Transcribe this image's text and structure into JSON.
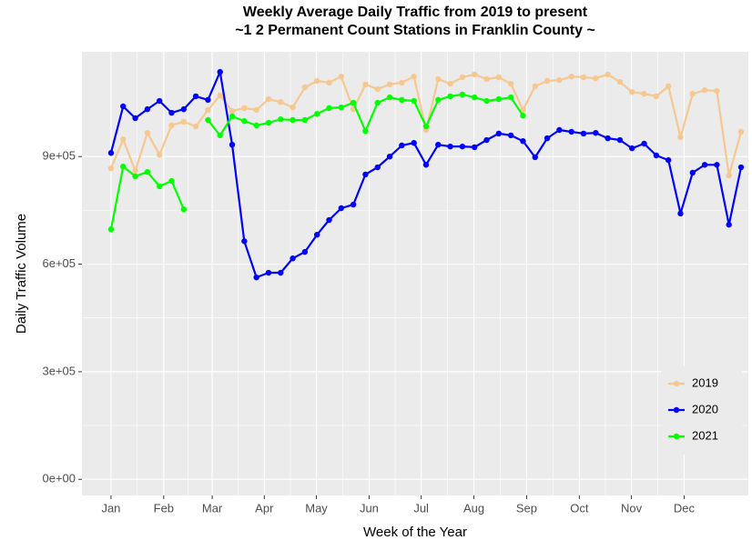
{
  "chart_data": {
    "type": "line",
    "title": "Weekly Average Daily Traffic from 2019 to present",
    "subtitle": "~1 2 Permanent Count Stations in Franklin County ~",
    "x_label": "Week of the Year",
    "y_label": "Daily Traffic Volume",
    "x": [
      1,
      2,
      3,
      4,
      5,
      6,
      7,
      8,
      9,
      10,
      11,
      12,
      13,
      14,
      15,
      16,
      17,
      18,
      19,
      20,
      21,
      22,
      23,
      24,
      25,
      26,
      27,
      28,
      29,
      30,
      31,
      32,
      33,
      34,
      35,
      36,
      37,
      38,
      39,
      40,
      41,
      42,
      43,
      44,
      45,
      46,
      47,
      48,
      49,
      50,
      51,
      52,
      53
    ],
    "xlim": [
      -1.4,
      53.6
    ],
    "xticks": [
      {
        "value": 1,
        "label": "Jan"
      },
      {
        "value": 5.35,
        "label": "Feb"
      },
      {
        "value": 9.35,
        "label": "Mar"
      },
      {
        "value": 13.65,
        "label": "Apr"
      },
      {
        "value": 17.95,
        "label": "May"
      },
      {
        "value": 22.3,
        "label": "Jun"
      },
      {
        "value": 26.6,
        "label": "Jul"
      },
      {
        "value": 30.95,
        "label": "Aug"
      },
      {
        "value": 35.3,
        "label": "Sep"
      },
      {
        "value": 39.65,
        "label": "Oct"
      },
      {
        "value": 43.95,
        "label": "Nov"
      },
      {
        "value": 48.3,
        "label": "Dec"
      }
    ],
    "ylim": [
      -45000,
      1192000
    ],
    "yticks": [
      {
        "value": 0,
        "label": "0e+00"
      },
      {
        "value": 300000,
        "label": "3e+05"
      },
      {
        "value": 600000,
        "label": "6e+05"
      },
      {
        "value": 900000,
        "label": "9e+05"
      }
    ],
    "grid": true,
    "legend": "bottom-right",
    "series": [
      {
        "name": "2019",
        "color": "#f5c891",
        "values": [
          867000,
          948000,
          860000,
          966000,
          905000,
          987000,
          997000,
          984000,
          1030000,
          1070000,
          1027000,
          1035000,
          1030000,
          1060000,
          1052000,
          1037000,
          1093000,
          1111000,
          1106000,
          1123000,
          1032000,
          1101000,
          1088000,
          1101000,
          1106000,
          1123000,
          974000,
          1116000,
          1103000,
          1121000,
          1129000,
          1116000,
          1121000,
          1103000,
          1030000,
          1096000,
          1111000,
          1113000,
          1123000,
          1121000,
          1118000,
          1129000,
          1108000,
          1080000,
          1075000,
          1068000,
          1096000,
          954000,
          1075000,
          1085000,
          1083000,
          847000,
          969000
        ]
      },
      {
        "name": "2020",
        "color": "#0000ff",
        "values": [
          910000,
          1040000,
          1007000,
          1032000,
          1055000,
          1022000,
          1032000,
          1068000,
          1058000,
          1136000,
          933000,
          664000,
          563000,
          576000,
          576000,
          616000,
          634000,
          682000,
          723000,
          756000,
          766000,
          850000,
          870000,
          900000,
          931000,
          938000,
          877000,
          933000,
          928000,
          928000,
          926000,
          946000,
          964000,
          959000,
          943000,
          898000,
          951000,
          974000,
          969000,
          964000,
          966000,
          951000,
          946000,
          923000,
          936000,
          903000,
          890000,
          741000,
          855000,
          877000,
          877000,
          710000,
          870000
        ]
      },
      {
        "name": "2021",
        "color": "#00ff00",
        "values": [
          697000,
          872000,
          845000,
          857000,
          817000,
          832000,
          753000,
          null,
          1002000,
          959000,
          1012000,
          999000,
          987000,
          994000,
          1004000,
          1002000,
          1002000,
          1019000,
          1035000,
          1037000,
          1050000,
          971000,
          1050000,
          1065000,
          1058000,
          1055000,
          984000,
          1058000,
          1068000,
          1073000,
          1065000,
          1055000,
          1060000,
          1065000,
          1014000,
          null,
          null,
          null,
          null,
          null,
          null,
          null,
          null,
          null,
          null,
          null,
          null,
          null,
          null,
          null,
          null,
          null,
          null
        ]
      }
    ]
  }
}
